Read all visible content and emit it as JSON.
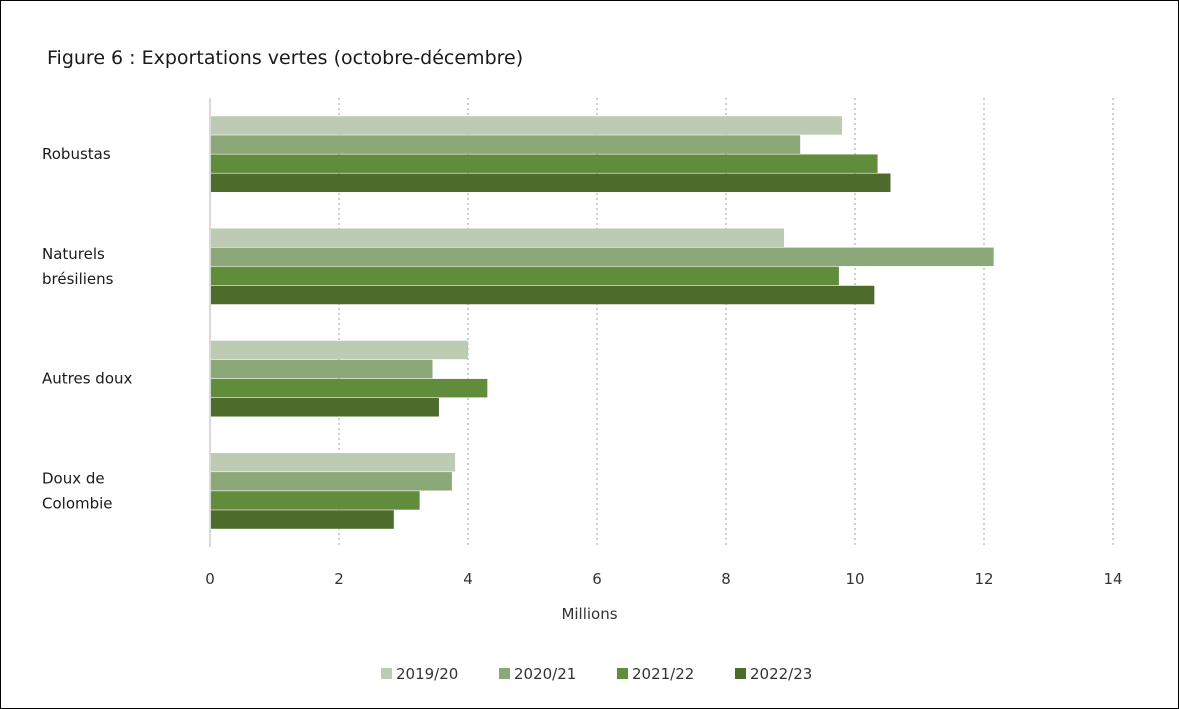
{
  "chart_data": {
    "type": "bar",
    "orientation": "horizontal",
    "title": "Figure 6 : Exportations vertes (octobre-décembre)",
    "xlabel": "Millions",
    "ylabel": "",
    "xlim": [
      0,
      14
    ],
    "x_ticks": [
      "0",
      "2",
      "4",
      "6",
      "8",
      "10",
      "12",
      "14"
    ],
    "grid": "vertical dotted",
    "legend_position": "bottom",
    "categories": [
      [
        "Robustas"
      ],
      [
        "Naturels",
        "brésiliens"
      ],
      [
        "Autres doux"
      ],
      [
        "Doux de",
        "Colombie"
      ]
    ],
    "series": [
      {
        "name": "2019/20",
        "color": "#bccbb2",
        "values": [
          9.8,
          8.9,
          4.0,
          3.8
        ]
      },
      {
        "name": "2020/21",
        "color": "#8ba878",
        "values": [
          9.15,
          12.15,
          3.45,
          3.75
        ]
      },
      {
        "name": "2021/22",
        "color": "#618c3c",
        "values": [
          10.35,
          9.75,
          4.3,
          3.25
        ]
      },
      {
        "name": "2022/23",
        "color": "#4d6c2c",
        "values": [
          10.55,
          10.3,
          3.55,
          2.85
        ]
      }
    ]
  }
}
